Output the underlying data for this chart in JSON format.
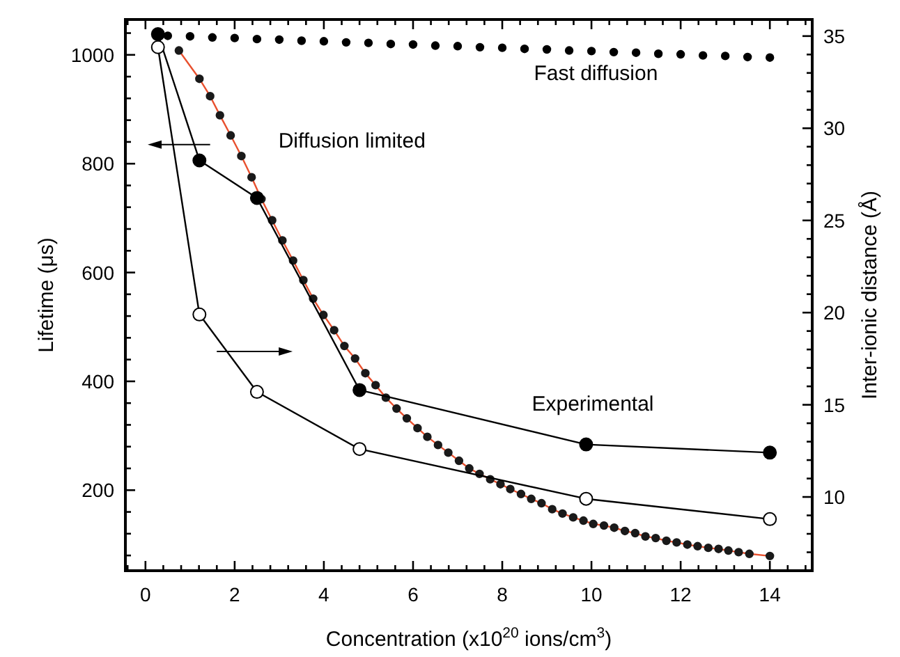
{
  "chart_data": {
    "type": "line",
    "xlabel": "Concentration (x10$^{20}$ ions/cm$^{3}$)",
    "ylabel": "Lifetime (μs)",
    "y2label": "Inter-ionic distance (Å)",
    "xlim": [
      -0.45,
      14.95
    ],
    "ylim": [
      52,
      1065
    ],
    "y2lim": [
      6,
      35.9
    ],
    "xticks": [
      {
        "value": -0.4,
        "label": null
      },
      0,
      {
        "value": 0.4,
        "label": null
      },
      {
        "value": 0.8,
        "label": null
      },
      {
        "value": 1.2,
        "label": null
      },
      {
        "value": 1.6,
        "label": null
      },
      2,
      {
        "value": 2.4,
        "label": null
      },
      {
        "value": 2.8,
        "label": null
      },
      {
        "value": 3.2,
        "label": null
      },
      {
        "value": 3.6,
        "label": null
      },
      4,
      {
        "value": 4.4,
        "label": null
      },
      {
        "value": 4.8,
        "label": null
      },
      {
        "value": 5.2,
        "label": null
      },
      {
        "value": 5.6,
        "label": null
      },
      6,
      {
        "value": 6.4,
        "label": null
      },
      {
        "value": 6.8,
        "label": null
      },
      {
        "value": 7.2,
        "label": null
      },
      {
        "value": 7.6,
        "label": null
      },
      8,
      {
        "value": 8.4,
        "label": null
      },
      {
        "value": 8.8,
        "label": null
      },
      {
        "value": 9.2,
        "label": null
      },
      {
        "value": 9.6,
        "label": null
      },
      10,
      {
        "value": 10.4,
        "label": null
      },
      {
        "value": 10.8,
        "label": null
      },
      {
        "value": 11.2,
        "label": null
      },
      {
        "value": 11.6,
        "label": null
      },
      12,
      {
        "value": 12.4,
        "label": null
      },
      {
        "value": 12.8,
        "label": null
      },
      {
        "value": 13.2,
        "label": null
      },
      {
        "value": 13.6,
        "label": null
      },
      14,
      {
        "value": 14.4,
        "label": null
      },
      {
        "value": 14.8,
        "label": null
      }
    ],
    "yticks": [
      {
        "value": 80,
        "label": null
      },
      {
        "value": 120,
        "label": null
      },
      {
        "value": 160,
        "label": null
      },
      200,
      {
        "value": 240,
        "label": null
      },
      {
        "value": 280,
        "label": null
      },
      {
        "value": 320,
        "label": null
      },
      {
        "value": 360,
        "label": null
      },
      400,
      {
        "value": 440,
        "label": null
      },
      {
        "value": 480,
        "label": null
      },
      {
        "value": 520,
        "label": null
      },
      {
        "value": 560,
        "label": null
      },
      600,
      {
        "value": 640,
        "label": null
      },
      {
        "value": 680,
        "label": null
      },
      {
        "value": 720,
        "label": null
      },
      {
        "value": 760,
        "label": null
      },
      800,
      {
        "value": 840,
        "label": null
      },
      {
        "value": 880,
        "label": null
      },
      {
        "value": 920,
        "label": null
      },
      {
        "value": 960,
        "label": null
      },
      1000,
      {
        "value": 1040,
        "label": null
      }
    ],
    "y2ticks": [
      {
        "value": 7,
        "label": null
      },
      {
        "value": 8,
        "label": null
      },
      {
        "value": 9,
        "label": null
      },
      10,
      {
        "value": 11,
        "label": null
      },
      {
        "value": 12,
        "label": null
      },
      {
        "value": 13,
        "label": null
      },
      {
        "value": 14,
        "label": null
      },
      15,
      {
        "value": 16,
        "label": null
      },
      {
        "value": 17,
        "label": null
      },
      {
        "value": 18,
        "label": null
      },
      {
        "value": 19,
        "label": null
      },
      20,
      {
        "value": 21,
        "label": null
      },
      {
        "value": 22,
        "label": null
      },
      {
        "value": 23,
        "label": null
      },
      {
        "value": 24,
        "label": null
      },
      25,
      {
        "value": 26,
        "label": null
      },
      {
        "value": 27,
        "label": null
      },
      {
        "value": 28,
        "label": null
      },
      {
        "value": 29,
        "label": null
      },
      30,
      {
        "value": 31,
        "label": null
      },
      {
        "value": 32,
        "label": null
      },
      {
        "value": 33,
        "label": null
      },
      {
        "value": 34,
        "label": null
      },
      35
    ],
    "grid": false,
    "legend": false,
    "series": [
      {
        "type": "scatter",
        "name": "Fast diffusion",
        "color": "#000000",
        "marker": "circle",
        "x": [
          0.5,
          1,
          1.5,
          2,
          2.5,
          3,
          3.5,
          4,
          4.5,
          5,
          5.5,
          6,
          6.5,
          7,
          7.5,
          8,
          8.5,
          9,
          9.5,
          10,
          10.5,
          11,
          11.5,
          12,
          12.5,
          13,
          13.5,
          14
        ],
        "values": [
          1035,
          1034,
          1032,
          1031,
          1029,
          1028,
          1026,
          1025,
          1023,
          1022,
          1020,
          1019,
          1017,
          1016,
          1014,
          1013,
          1011,
          1010,
          1008,
          1007,
          1005,
          1004,
          1002,
          1001,
          999,
          998,
          996,
          995
        ]
      },
      {
        "type": "line",
        "name": "Diffusion limited",
        "color": "#e8502e",
        "marker": "circle",
        "x": [
          0.75,
          1.21,
          1.45,
          1.67,
          1.91,
          2.15,
          2.38,
          2.6,
          2.84,
          3.07,
          3.31,
          3.54,
          3.76,
          3.99,
          4.23,
          4.46,
          4.7,
          4.93,
          5.16,
          5.39,
          5.63,
          5.86,
          6.1,
          6.32,
          6.56,
          6.79,
          7.03,
          7.26,
          7.49,
          7.73,
          7.96,
          8.18,
          8.42,
          8.65,
          8.88,
          9.12,
          9.35,
          9.59,
          9.82,
          10.04,
          10.28,
          10.51,
          10.75,
          10.98,
          11.21,
          11.44,
          11.68,
          11.91,
          12.15,
          12.38,
          12.62,
          12.85,
          13.07,
          13.3,
          13.54,
          14.0
        ],
        "values": [
          1008,
          956,
          924,
          889,
          852,
          814,
          775,
          735,
          696,
          659,
          622,
          586,
          552,
          522,
          494,
          465,
          442,
          415,
          393,
          370,
          350,
          332,
          314,
          298,
          283,
          269,
          254,
          240,
          230,
          220,
          211,
          202,
          193,
          184,
          176,
          165,
          157,
          150,
          144,
          138,
          135,
          131,
          125,
          121,
          115,
          112,
          107,
          104,
          100,
          97,
          94,
          92,
          89,
          86,
          83,
          79
        ]
      },
      {
        "name": "Experimental",
        "color": "#000000",
        "marker": "circle",
        "x": [
          0.28,
          1.21,
          2.5,
          4.8,
          9.88,
          14.0
        ],
        "values": [
          1038,
          806,
          737,
          384,
          284,
          269
        ]
      },
      {
        "axis": "y2",
        "color": "#000000",
        "marker": "circle",
        "x": [
          0.28,
          1.21,
          2.5,
          4.8,
          9.88,
          14.0
        ],
        "values": [
          34.4,
          19.9,
          15.7,
          12.6,
          9.9,
          8.8
        ]
      }
    ]
  }
}
